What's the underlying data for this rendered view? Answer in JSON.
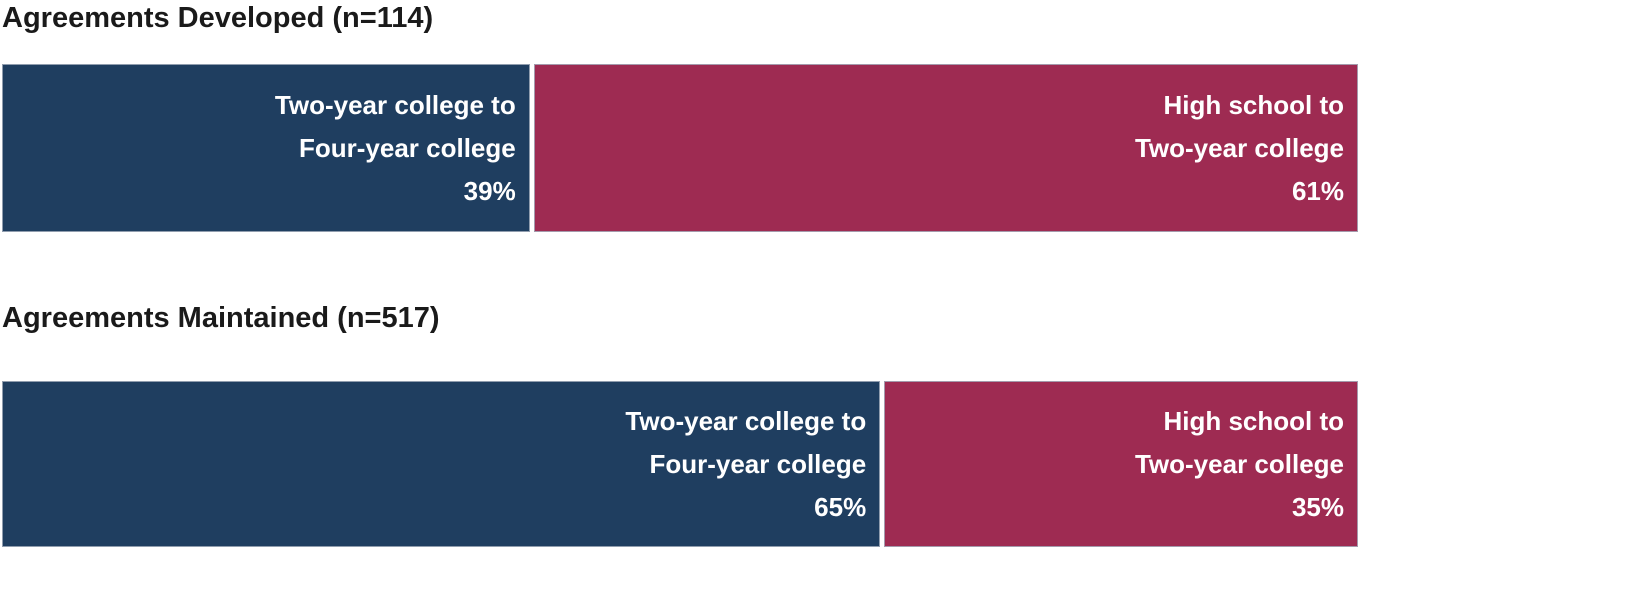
{
  "page": {
    "background": "#ffffff",
    "title_color": "#1a1a1a",
    "bar_label_color": "#ffffff"
  },
  "chart_data": {
    "type": "bar",
    "subtype": "100pct-stacked-horizontal",
    "orientation": "horizontal",
    "grid": false,
    "axes_visible": false,
    "legend": "none",
    "label_position": "inside-end-right-aligned",
    "categories": [
      "Agreements Developed (n=114)",
      "Agreements Maintained (n=517)"
    ],
    "series": [
      {
        "name": "Two-year college to Four-year college",
        "color": "#1F3E60",
        "values": [
          39,
          65
        ]
      },
      {
        "name": "High school to Two-year college",
        "color": "#9E2B52",
        "values": [
          61,
          35
        ]
      }
    ],
    "charts": [
      {
        "title": "Agreements Developed (n=114)",
        "segments": [
          {
            "name": "Two-year college to Four-year college",
            "lines": [
              "Two-year college to",
              "Four-year college"
            ],
            "value": 39,
            "value_label": "39%",
            "color": "#1F3E60"
          },
          {
            "name": "High school to Two-year college",
            "lines": [
              "High school to",
              "Two-year college"
            ],
            "value": 61,
            "value_label": "61%",
            "color": "#9E2B52"
          }
        ]
      },
      {
        "title": "Agreements Maintained (n=517)",
        "segments": [
          {
            "name": "Two-year college to Four-year college",
            "lines": [
              "Two-year college to",
              "Four-year college"
            ],
            "value": 65,
            "value_label": "65%",
            "color": "#1F3E60"
          },
          {
            "name": "High school to Two-year college",
            "lines": [
              "High school to",
              "Two-year college"
            ],
            "value": 35,
            "value_label": "35%",
            "color": "#9E2B52"
          }
        ]
      }
    ]
  }
}
